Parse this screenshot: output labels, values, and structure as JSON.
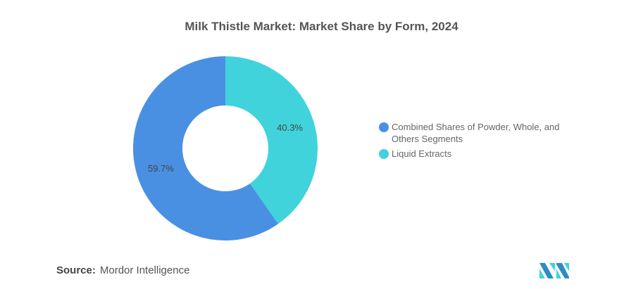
{
  "title": "Milk Thistle Market: Market Share by Form, 2024",
  "chart_data": {
    "type": "pie",
    "donut": true,
    "title": "Milk Thistle Market: Market Share by Form, 2024",
    "slices": [
      {
        "label": "Liquid Extracts",
        "value": 40.3,
        "display": "40.3%",
        "color": "#40D3DC"
      },
      {
        "label": "Combined Shares of Powder, Whole, and Others Segments",
        "value": 59.7,
        "display": "59.7%",
        "color": "#4A90E2"
      }
    ],
    "legend_placement": "right",
    "legend": [
      {
        "label": "Combined Shares of Powder, Whole, and Others Segments",
        "color": "#4A90E2"
      },
      {
        "label": "Liquid Extracts",
        "color": "#40D3DC"
      }
    ]
  },
  "source": {
    "label": "Source:",
    "value": "Mordor Intelligence"
  },
  "logo": {
    "name": "mordor-intelligence-logo",
    "text": "MI"
  }
}
